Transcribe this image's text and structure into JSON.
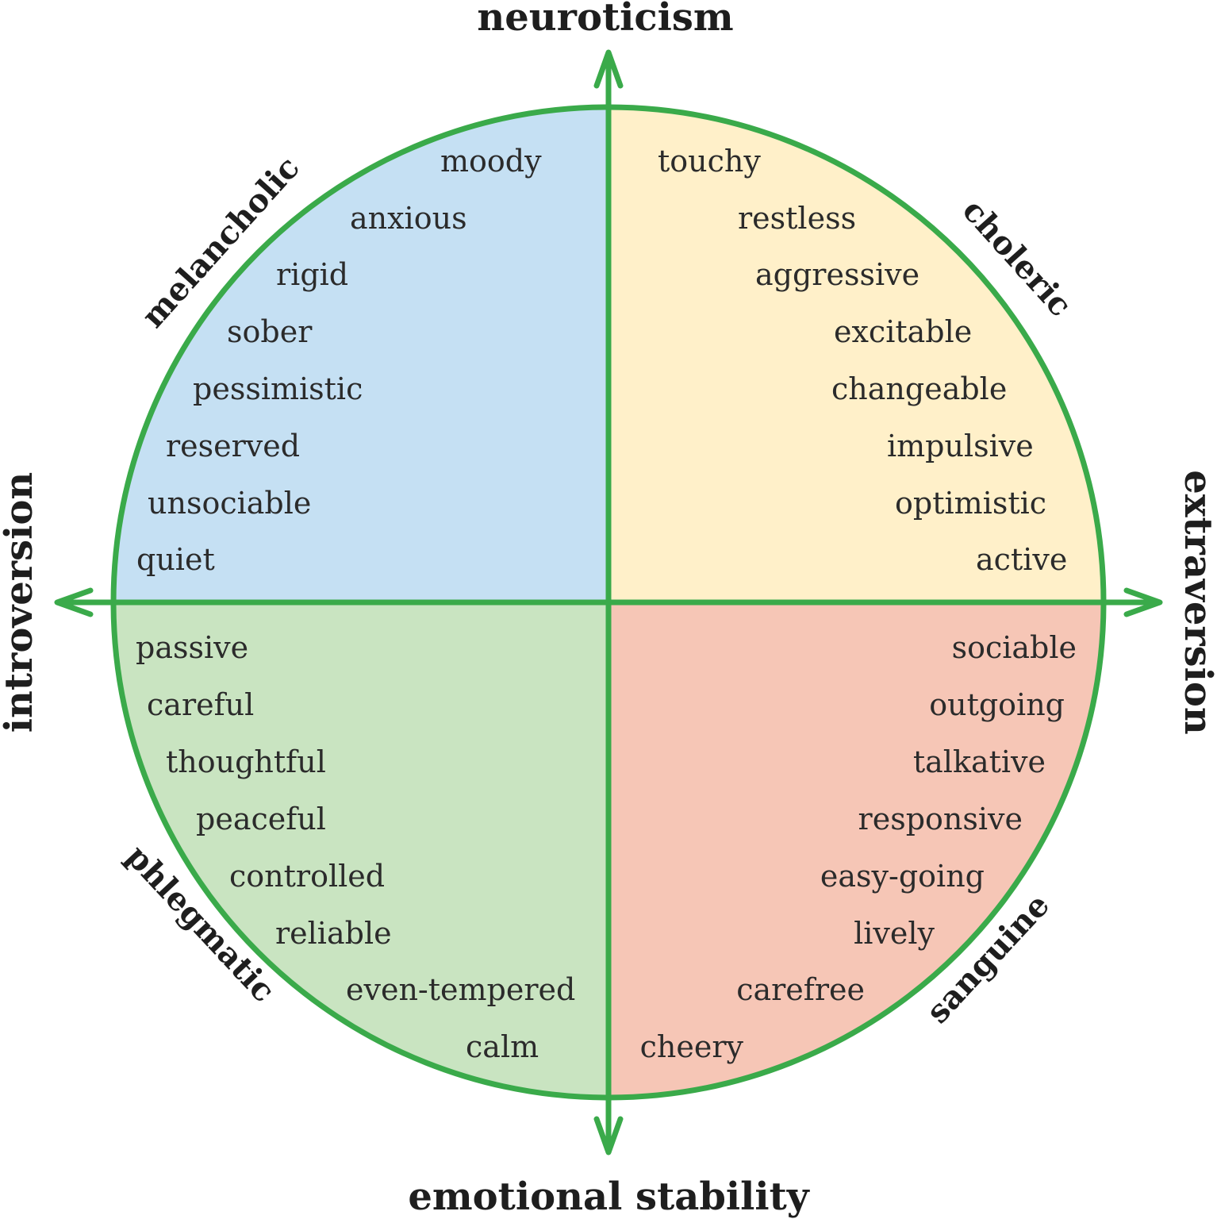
{
  "colors": {
    "green": "#3aaa4a",
    "melancholic_fill": "#c5e0f3",
    "choleric_fill": "#fff0c9",
    "phlegmatic_fill": "#c9e4c1",
    "sanguine_fill": "#f6c6b6"
  },
  "axes": {
    "top": "neuroticism",
    "bottom": "emotional stability",
    "left": "introversion",
    "right": "extraversion"
  },
  "types": {
    "melancholic": "melancholic",
    "choleric": "choleric",
    "phlegmatic": "phlegmatic",
    "sanguine": "sanguine"
  },
  "traits": {
    "melancholic": [
      "moody",
      "anxious",
      "rigid",
      "sober",
      "pessimistic",
      "reserved",
      "unsociable",
      "quiet"
    ],
    "choleric": [
      "touchy",
      "restless",
      "aggressive",
      "excitable",
      "changeable",
      "impulsive",
      "optimistic",
      "active"
    ],
    "phlegmatic": [
      "passive",
      "careful",
      "thoughtful",
      "peaceful",
      "controlled",
      "reliable",
      "even-tempered",
      "calm"
    ],
    "sanguine": [
      "sociable",
      "outgoing",
      "talkative",
      "responsive",
      "easy-going",
      "lively",
      "carefree",
      "cheery"
    ]
  }
}
